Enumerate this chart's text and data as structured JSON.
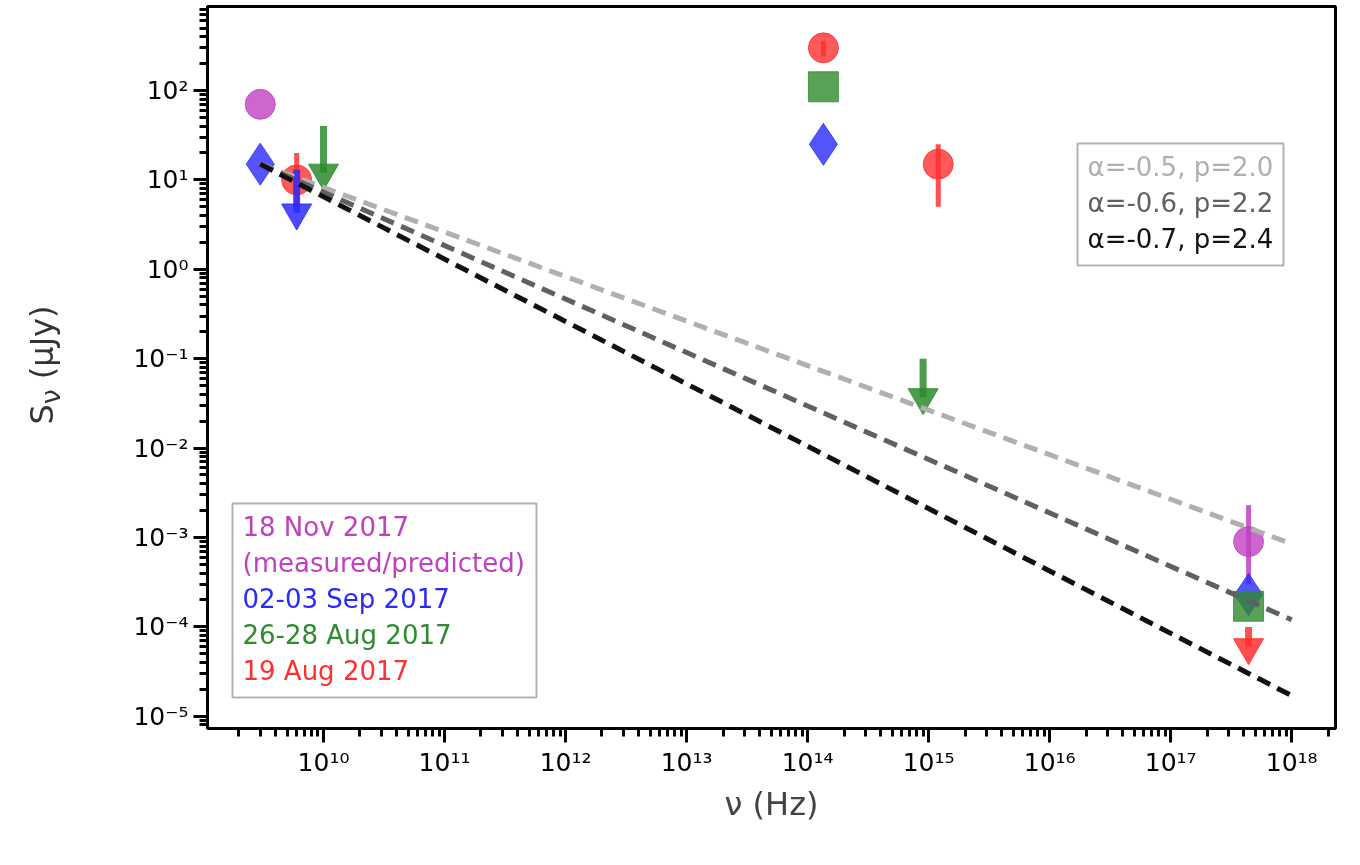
{
  "chart_data": {
    "type": "scatter",
    "xlabel": "ν (Hz)",
    "ylabel": "S$_{ν}$ (μJy)",
    "log": "xy",
    "grid": false,
    "legend": "bottom left",
    "xlim": [
      1100000000.0,
      2.3e+18
    ],
    "ylim": [
      7.3e-06,
      870
    ],
    "xticks": [
      {
        "value": 10000000000.0,
        "label": "10¹⁰"
      },
      {
        "value": 100000000000.0,
        "label": "10¹¹"
      },
      {
        "value": 1000000000000.0,
        "label": "10¹²"
      },
      {
        "value": 10000000000000.0,
        "label": "10¹³"
      },
      {
        "value": 100000000000000.0,
        "label": "10¹⁴"
      },
      {
        "value": 1000000000000000.0,
        "label": "10¹⁵"
      },
      {
        "value": 1e+16,
        "label": "10¹⁶"
      },
      {
        "value": 1e+17,
        "label": "10¹⁷"
      },
      {
        "value": 1e+18,
        "label": "10¹⁸"
      }
    ],
    "yticks": [
      {
        "value": 1e-05,
        "label": "10⁻⁵"
      },
      {
        "value": 0.0001,
        "label": "10⁻⁴"
      },
      {
        "value": 0.001,
        "label": "10⁻³"
      },
      {
        "value": 0.01,
        "label": "10⁻²"
      },
      {
        "value": 0.1,
        "label": "10⁻¹"
      },
      {
        "value": 1,
        "label": "10⁰"
      },
      {
        "value": 10,
        "label": "10¹"
      },
      {
        "value": 100,
        "label": "10²"
      }
    ],
    "series": [
      {
        "type": "line",
        "name": "α=-0.5, p=2.0",
        "color": "#b0b0b0",
        "line_style": "dashed",
        "x": [
          3000000000.0,
          1e+18
        ],
        "values": [
          15,
          0.00085
        ]
      },
      {
        "type": "line",
        "name": "α=-0.6, p=2.2",
        "color": "#606060",
        "line_style": "dashed",
        "x": [
          3000000000.0,
          1e+18
        ],
        "values": [
          15,
          0.00012
        ]
      },
      {
        "type": "line",
        "name": "α=-0.7, p=2.4",
        "color": "#111111",
        "line_style": "dashed",
        "x": [
          3000000000.0,
          1e+18
        ],
        "values": [
          15,
          1.7e-05
        ]
      },
      {
        "type": "scatter",
        "name": "18 Nov 2017\n(measured/predicted)",
        "color": "#c040c0",
        "marker": "circle",
        "x": [
          3000000000.0,
          4.4e+17
        ],
        "values": [
          70,
          0.0009
        ],
        "errors": [
          null,
          [
            0.0003,
            0.0023
          ]
        ]
      },
      {
        "type": "scatter",
        "name": "02-03 Sep 2017",
        "color": "#2a2aff",
        "marker": "diamond",
        "x": [
          3000000000.0,
          135000000000000.0,
          4.4e+17
        ],
        "values": [
          15,
          25,
          0.00023
        ]
      },
      {
        "type": "scatter",
        "name": "26-28 Aug 2017",
        "color": "#2e8b2e",
        "marker": "square",
        "x": [
          135000000000000.0,
          4.4e+17
        ],
        "values": [
          110,
          0.00017
        ]
      },
      {
        "type": "scatter",
        "name": "19 Aug 2017",
        "color": "#ff3030",
        "marker": "circle",
        "x": [
          6000000000.0,
          135000000000000.0,
          1200000000000000.0
        ],
        "values": [
          10,
          300,
          15
        ],
        "errors": [
          [
            5,
            20
          ],
          [
            240,
            360
          ],
          [
            5,
            25
          ]
        ]
      },
      {
        "type": "scatter",
        "color": "#2a2aff",
        "marker": "triangle",
        "x": [
          6000000000.0
        ],
        "values": [
          4.3
        ],
        "errors": [
          [
            4.3,
            13
          ]
        ]
      },
      {
        "type": "scatter",
        "color": "#2e8b2e",
        "marker": "triangle",
        "x": [
          10000000000.0,
          900000000000000.0
        ],
        "values": [
          12,
          0.037
        ],
        "errors": [
          [
            12,
            40
          ],
          [
            0.037,
            0.1
          ]
        ]
      },
      {
        "type": "scatter",
        "color": "#ff3030",
        "marker": "triangle",
        "x": [
          4.4e+17
        ],
        "values": [
          5.9e-05
        ],
        "errors": [
          [
            5.9e-05,
            0.0001
          ]
        ]
      }
    ]
  }
}
